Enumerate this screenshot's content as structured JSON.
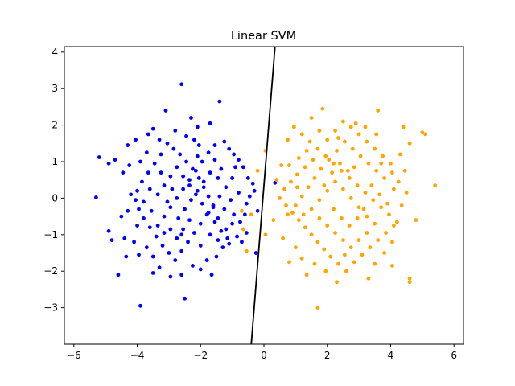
{
  "chart_data": {
    "type": "scatter",
    "title": "Linear SVM",
    "xlabel": "",
    "ylabel": "",
    "xlim": [
      -6.3,
      6.3
    ],
    "ylim": [
      -4.0,
      4.15
    ],
    "xticks": [
      -6,
      -4,
      -2,
      0,
      2,
      4,
      6
    ],
    "yticks": [
      -3,
      -2,
      -1,
      0,
      1,
      2,
      3,
      4
    ],
    "grid": false,
    "legend": "none",
    "series": [
      {
        "color": "#0000ff",
        "points": [
          [
            -5.3,
            0.02
          ],
          [
            -4.9,
            0.95
          ],
          [
            -4.7,
            1.05
          ],
          [
            -5.2,
            1.12
          ],
          [
            -4.9,
            -0.9
          ],
          [
            -4.6,
            -2.1
          ],
          [
            -4.8,
            -1.15
          ],
          [
            -3.9,
            -2.95
          ],
          [
            -3.1,
            2.4
          ],
          [
            -2.6,
            3.12
          ],
          [
            -1.4,
            2.65
          ],
          [
            -2.3,
            2.2
          ],
          [
            -2.1,
            1.95
          ],
          [
            -1.7,
            2.05
          ],
          [
            -2.5,
            -2.75
          ],
          [
            -3.5,
            1.9
          ],
          [
            -4.3,
            1.45
          ],
          [
            -4.05,
            1.6
          ],
          [
            -4.45,
            0.7
          ],
          [
            -4.3,
            -0.35
          ],
          [
            -4.4,
            -1.1
          ],
          [
            -4.1,
            -1.2
          ],
          [
            -3.95,
            -1.55
          ],
          [
            -3.7,
            -1.35
          ],
          [
            -3.5,
            -2.05
          ],
          [
            -3.3,
            -1.9
          ],
          [
            -2.95,
            -2.15
          ],
          [
            -2.6,
            -2.1
          ],
          [
            -2.25,
            -1.85
          ],
          [
            -2.0,
            -1.95
          ],
          [
            -1.8,
            -1.7
          ],
          [
            -1.5,
            -1.6
          ],
          [
            -1.3,
            -1.35
          ],
          [
            -1.1,
            -1.25
          ],
          [
            -0.85,
            -1.05
          ],
          [
            -0.7,
            -1.2
          ],
          [
            -0.55,
            -0.95
          ],
          [
            -0.25,
            -1.5
          ],
          [
            -1.65,
            -2.1
          ],
          [
            -2.2,
            1.6
          ],
          [
            -2.05,
            1.45
          ],
          [
            -1.55,
            1.45
          ],
          [
            -1.25,
            1.55
          ],
          [
            -1.1,
            1.35
          ],
          [
            -0.95,
            1.2
          ],
          [
            -0.8,
            1.05
          ],
          [
            -0.65,
            0.85
          ],
          [
            -0.5,
            0.55
          ],
          [
            -0.35,
            0.4
          ],
          [
            -0.8,
            0.15
          ],
          [
            -0.55,
            -0.15
          ],
          [
            -0.95,
            -0.45
          ],
          [
            -1.0,
            -0.7
          ],
          [
            -1.2,
            -0.85
          ],
          [
            -1.45,
            -0.55
          ],
          [
            -1.6,
            -0.25
          ],
          [
            -1.75,
            0.05
          ],
          [
            -1.9,
            0.3
          ],
          [
            -2.05,
            0.55
          ],
          [
            -2.25,
            0.8
          ],
          [
            -2.45,
            1.0
          ],
          [
            -2.65,
            1.2
          ],
          [
            -2.85,
            1.35
          ],
          [
            -3.05,
            1.5
          ],
          [
            -3.25,
            1.2
          ],
          [
            -3.45,
            0.95
          ],
          [
            -3.65,
            0.7
          ],
          [
            -3.85,
            0.45
          ],
          [
            -4.0,
            0.2
          ],
          [
            -4.05,
            -0.05
          ],
          [
            -3.95,
            -0.3
          ],
          [
            -3.8,
            -0.55
          ],
          [
            -3.6,
            -0.8
          ],
          [
            -3.4,
            -1.05
          ],
          [
            -3.2,
            -1.3
          ],
          [
            -3.0,
            -1.5
          ],
          [
            -2.8,
            -1.7
          ],
          [
            -2.6,
            -1.45
          ],
          [
            -2.4,
            -1.2
          ],
          [
            -2.2,
            -0.95
          ],
          [
            -2.0,
            -0.7
          ],
          [
            -1.8,
            -0.45
          ],
          [
            -1.6,
            -0.2
          ],
          [
            -1.4,
            0.05
          ],
          [
            -1.2,
            0.3
          ],
          [
            -1.0,
            0.55
          ],
          [
            -1.35,
            0.8
          ],
          [
            -1.55,
            1.05
          ],
          [
            -1.75,
            1.25
          ],
          [
            -1.95,
            1.0
          ],
          [
            -2.15,
            0.75
          ],
          [
            -2.35,
            0.5
          ],
          [
            -2.55,
            0.25
          ],
          [
            -2.75,
            0.0
          ],
          [
            -2.95,
            -0.25
          ],
          [
            -3.15,
            -0.5
          ],
          [
            -3.35,
            -0.75
          ],
          [
            -3.55,
            -0.35
          ],
          [
            -3.35,
            0.1
          ],
          [
            -3.15,
            0.35
          ],
          [
            -2.95,
            0.6
          ],
          [
            -2.75,
            0.85
          ],
          [
            -2.55,
            0.6
          ],
          [
            -2.35,
            0.35
          ],
          [
            -2.15,
            0.1
          ],
          [
            -1.95,
            -0.15
          ],
          [
            -1.75,
            -0.4
          ],
          [
            -1.55,
            -0.65
          ],
          [
            -1.35,
            -0.9
          ],
          [
            -1.15,
            -1.1
          ],
          [
            -2.35,
            -0.6
          ],
          [
            -2.55,
            -0.85
          ],
          [
            -2.75,
            -1.1
          ],
          [
            -2.95,
            -0.85
          ],
          [
            -3.15,
            -0.95
          ],
          [
            -2.5,
            -0.3
          ],
          [
            -2.3,
            -0.05
          ],
          [
            -2.1,
            0.2
          ],
          [
            -1.9,
            0.45
          ],
          [
            -1.7,
            0.7
          ],
          [
            -3.6,
            0.25
          ],
          [
            -3.8,
            -0.1
          ],
          [
            -4.2,
            0.1
          ],
          [
            -4.5,
            -0.5
          ],
          [
            -4.25,
            0.9
          ],
          [
            -3.9,
            1.0
          ],
          [
            -3.7,
            1.25
          ],
          [
            -3.3,
            1.6
          ],
          [
            -2.8,
            1.85
          ],
          [
            -2.45,
            1.7
          ],
          [
            -0.3,
            0.2
          ],
          [
            -0.2,
            -0.35
          ],
          [
            -0.45,
            0.05
          ],
          [
            -0.6,
            -0.45
          ],
          [
            -0.75,
            -0.65
          ],
          [
            -1.05,
            -0.05
          ],
          [
            -1.25,
            -0.3
          ],
          [
            -0.9,
            0.85
          ],
          [
            -2.7,
            -0.55
          ],
          [
            -3.05,
            -0.1
          ],
          [
            -3.25,
            0.7
          ],
          [
            -2.9,
            0.25
          ],
          [
            -2.6,
            -1.0
          ],
          [
            -2.0,
            -1.3
          ],
          [
            -1.7,
            -1.0
          ],
          [
            -1.45,
            -1.15
          ],
          [
            -3.5,
            -1.6
          ],
          [
            -4.0,
            -0.75
          ],
          [
            -4.35,
            -1.6
          ],
          [
            -3.65,
            1.75
          ],
          [
            -2.1,
            1.15
          ],
          [
            -1.45,
            0.55
          ],
          [
            0.35,
            0.42
          ]
        ]
      },
      {
        "color": "#ffa500",
        "points": [
          [
            1.7,
            -3.0
          ],
          [
            4.6,
            -2.3
          ],
          [
            4.6,
            -2.2
          ],
          [
            5.0,
            1.8
          ],
          [
            5.1,
            1.75
          ],
          [
            4.6,
            1.5
          ],
          [
            3.6,
            2.4
          ],
          [
            1.85,
            2.45
          ],
          [
            1.5,
            2.2
          ],
          [
            4.4,
            1.95
          ],
          [
            5.4,
            0.35
          ],
          [
            4.8,
            -0.6
          ],
          [
            0.8,
            -1.75
          ],
          [
            1.35,
            -2.1
          ],
          [
            2.3,
            -2.3
          ],
          [
            3.3,
            -2.2
          ],
          [
            4.05,
            -1.85
          ],
          [
            0.05,
            1.3
          ],
          [
            0.05,
            -1.0
          ],
          [
            -0.4,
            -0.45
          ],
          [
            -0.55,
            -1.45
          ],
          [
            0.75,
            1.6
          ],
          [
            0.95,
            1.95
          ],
          [
            1.2,
            1.75
          ],
          [
            1.45,
            1.55
          ],
          [
            1.7,
            1.35
          ],
          [
            1.95,
            1.15
          ],
          [
            2.2,
            0.95
          ],
          [
            2.45,
            0.75
          ],
          [
            2.7,
            0.55
          ],
          [
            2.95,
            0.35
          ],
          [
            3.2,
            0.15
          ],
          [
            3.45,
            -0.05
          ],
          [
            3.7,
            -0.25
          ],
          [
            3.95,
            -0.45
          ],
          [
            4.2,
            -0.65
          ],
          [
            4.0,
            0.95
          ],
          [
            3.75,
            1.15
          ],
          [
            3.5,
            1.35
          ],
          [
            3.25,
            1.55
          ],
          [
            3.0,
            1.75
          ],
          [
            2.75,
            1.95
          ],
          [
            2.5,
            2.1
          ],
          [
            2.25,
            1.85
          ],
          [
            2.0,
            1.6
          ],
          [
            1.75,
            1.85
          ],
          [
            1.55,
            1.05
          ],
          [
            1.3,
            0.85
          ],
          [
            1.05,
            0.65
          ],
          [
            0.85,
            0.45
          ],
          [
            0.65,
            0.25
          ],
          [
            0.5,
            0.0
          ],
          [
            0.7,
            -0.2
          ],
          [
            0.9,
            -0.4
          ],
          [
            1.1,
            -0.6
          ],
          [
            1.3,
            -0.8
          ],
          [
            1.5,
            -1.0
          ],
          [
            1.7,
            -1.2
          ],
          [
            1.9,
            -1.4
          ],
          [
            2.1,
            -1.6
          ],
          [
            2.35,
            -1.8
          ],
          [
            2.6,
            -2.0
          ],
          [
            2.85,
            -1.75
          ],
          [
            3.1,
            -1.55
          ],
          [
            3.35,
            -1.35
          ],
          [
            3.6,
            -1.15
          ],
          [
            3.85,
            -0.95
          ],
          [
            4.1,
            -0.75
          ],
          [
            4.35,
            -0.2
          ],
          [
            4.5,
            0.15
          ],
          [
            4.25,
            0.45
          ],
          [
            4.05,
            0.7
          ],
          [
            3.8,
            0.55
          ],
          [
            3.55,
            0.75
          ],
          [
            3.3,
            0.95
          ],
          [
            3.05,
            1.15
          ],
          [
            2.8,
            1.35
          ],
          [
            2.55,
            1.55
          ],
          [
            2.3,
            1.3
          ],
          [
            2.05,
            1.05
          ],
          [
            1.8,
            0.8
          ],
          [
            1.6,
            0.55
          ],
          [
            1.4,
            0.3
          ],
          [
            1.2,
            0.05
          ],
          [
            1.0,
            -0.2
          ],
          [
            1.25,
            -0.45
          ],
          [
            1.5,
            -0.3
          ],
          [
            1.75,
            -0.05
          ],
          [
            2.0,
            0.2
          ],
          [
            2.25,
            0.45
          ],
          [
            2.5,
            0.25
          ],
          [
            2.75,
            0.0
          ],
          [
            3.0,
            -0.25
          ],
          [
            3.25,
            -0.5
          ],
          [
            3.5,
            -0.7
          ],
          [
            3.25,
            -0.95
          ],
          [
            3.0,
            -1.15
          ],
          [
            2.75,
            -1.35
          ],
          [
            2.5,
            -1.15
          ],
          [
            2.25,
            -0.95
          ],
          [
            2.0,
            -0.75
          ],
          [
            1.75,
            -0.55
          ],
          [
            2.2,
            -0.3
          ],
          [
            2.45,
            -0.55
          ],
          [
            2.7,
            -0.75
          ],
          [
            2.95,
            -0.55
          ],
          [
            3.15,
            -0.3
          ],
          [
            2.65,
            0.75
          ],
          [
            2.4,
            0.95
          ],
          [
            2.15,
            0.7
          ],
          [
            1.9,
            0.35
          ],
          [
            2.85,
            0.85
          ],
          [
            3.4,
            0.35
          ],
          [
            3.65,
            0.1
          ],
          [
            3.9,
            -0.15
          ],
          [
            4.1,
            0.25
          ],
          [
            0.55,
            0.9
          ],
          [
            0.4,
            0.5
          ],
          [
            0.3,
            -0.6
          ],
          [
            0.6,
            -1.1
          ],
          [
            1.0,
            -1.35
          ],
          [
            1.2,
            -1.65
          ],
          [
            1.6,
            -1.8
          ],
          [
            1.95,
            -2.0
          ],
          [
            3.5,
            -1.8
          ],
          [
            3.8,
            -1.5
          ],
          [
            4.05,
            -1.2
          ],
          [
            4.3,
            1.2
          ],
          [
            4.45,
            0.75
          ],
          [
            1.35,
            1.3
          ],
          [
            1.1,
            1.1
          ],
          [
            0.8,
            0.9
          ],
          [
            2.35,
            1.65
          ],
          [
            2.9,
            2.05
          ],
          [
            3.2,
            1.95
          ],
          [
            3.55,
            1.75
          ],
          [
            1.05,
            0.3
          ],
          [
            0.75,
            -0.45
          ],
          [
            2.55,
            -1.55
          ],
          [
            3.7,
            0.95
          ],
          [
            -0.2,
            0.75
          ],
          [
            -0.65,
            -0.85
          ],
          [
            -0.7,
            -0.35
          ]
        ]
      }
    ],
    "decision_boundary": {
      "color": "#000000",
      "line": [
        [
          -0.4,
          -4.0
        ],
        [
          0.35,
          4.15
        ]
      ]
    }
  }
}
